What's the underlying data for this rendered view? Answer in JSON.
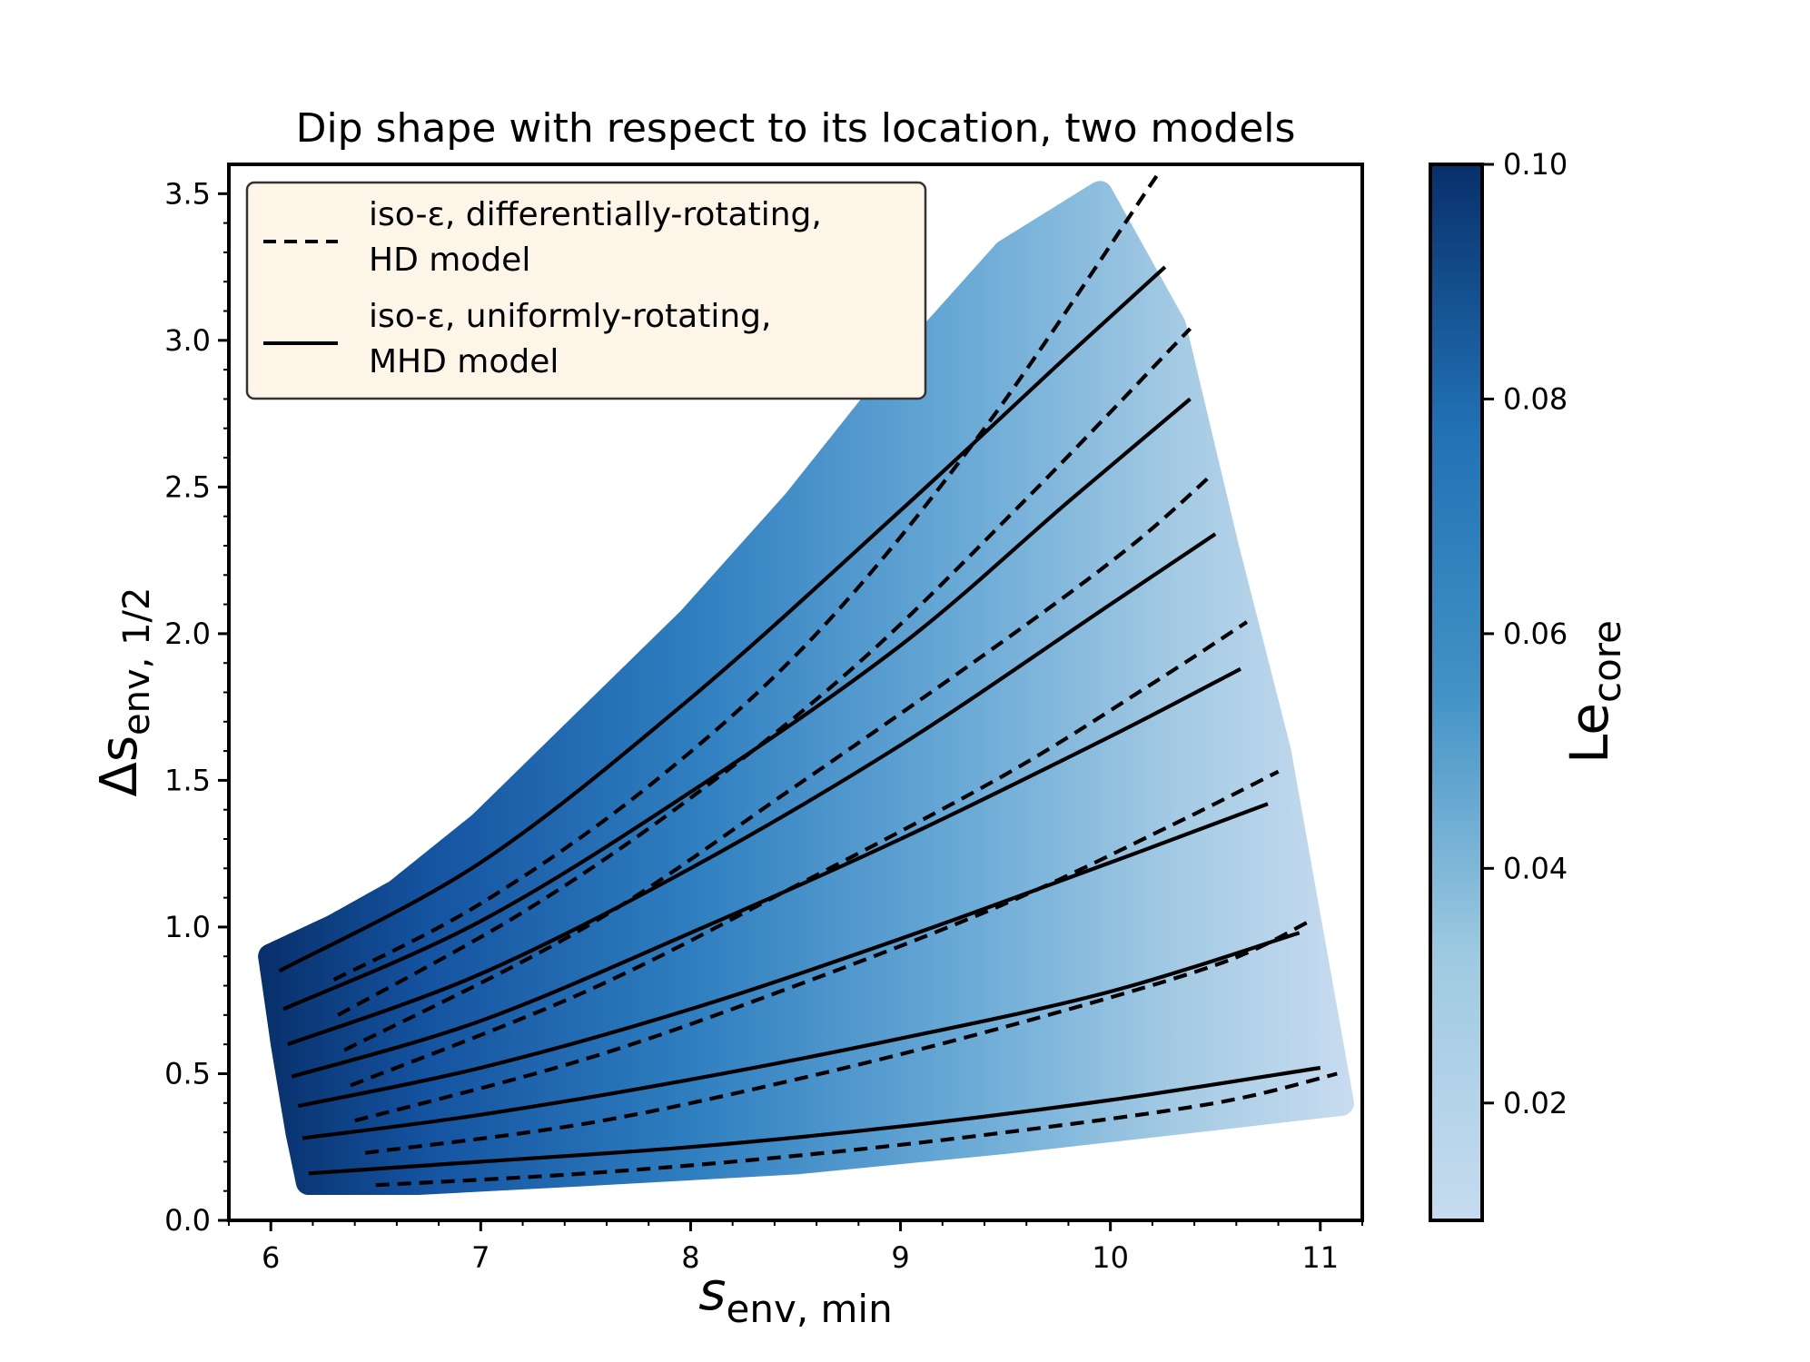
{
  "chart_data": {
    "type": "scatter",
    "title": "Dip shape with respect to its location, two models",
    "xlabel": "s",
    "xlabel_sub": "env, min",
    "ylabel": "Δs",
    "ylabel_sub": "env, 1/2",
    "xlim": [
      5.8,
      11.2
    ],
    "ylim": [
      0.0,
      3.6
    ],
    "xticks": [
      6,
      7,
      8,
      9,
      10,
      11
    ],
    "yticks": [
      0.0,
      0.5,
      1.0,
      1.5,
      2.0,
      2.5,
      3.0,
      3.5
    ],
    "grid": false,
    "legend": {
      "placement": "top-left",
      "entries": [
        {
          "style": "dashed",
          "line1": "iso-ε, differentially-rotating,",
          "line2": "HD model"
        },
        {
          "style": "solid",
          "line1": "iso-ε, uniformly-rotating,",
          "line2": "MHD model"
        }
      ]
    },
    "colorbar": {
      "label": "Le",
      "label_sub": "core",
      "range": [
        0.01,
        0.1
      ],
      "ticks": [
        0.02,
        0.04,
        0.06,
        0.08,
        0.1
      ],
      "tick_labels": [
        "0.02",
        "0.04",
        "0.06",
        "0.08",
        "0.10"
      ],
      "colormap": "Blues",
      "color_low": "#c6dbef",
      "color_high": "#08306b"
    },
    "scatter_region": {
      "description_color_variable": "Le_core",
      "left_edge": [
        [
          6.0,
          0.9
        ],
        [
          6.06,
          0.6
        ],
        [
          6.13,
          0.3
        ],
        [
          6.18,
          0.13
        ]
      ],
      "top_edge": [
        [
          6.0,
          0.9
        ],
        [
          6.3,
          1.0
        ],
        [
          6.6,
          1.12
        ],
        [
          7.0,
          1.35
        ],
        [
          7.5,
          1.7
        ],
        [
          8.0,
          2.05
        ],
        [
          8.5,
          2.45
        ],
        [
          9.0,
          2.9
        ],
        [
          9.5,
          3.3
        ],
        [
          9.95,
          3.5
        ]
      ],
      "right_edge": [
        [
          9.95,
          3.5
        ],
        [
          10.3,
          3.05
        ],
        [
          10.55,
          2.3
        ],
        [
          10.8,
          1.6
        ],
        [
          10.95,
          1.0
        ],
        [
          11.1,
          0.4
        ]
      ],
      "bottom_edge": [
        [
          11.1,
          0.4
        ],
        [
          10.5,
          0.35
        ],
        [
          9.5,
          0.27
        ],
        [
          8.5,
          0.2
        ],
        [
          7.5,
          0.16
        ],
        [
          6.7,
          0.13
        ],
        [
          6.18,
          0.13
        ]
      ]
    },
    "series": [
      {
        "name": "MHD 1",
        "style": "solid",
        "points": [
          [
            6.18,
            0.16
          ],
          [
            7.0,
            0.2
          ],
          [
            8.0,
            0.25
          ],
          [
            9.0,
            0.32
          ],
          [
            10.0,
            0.41
          ],
          [
            11.0,
            0.52
          ]
        ]
      },
      {
        "name": "HD 1",
        "style": "dashed",
        "points": [
          [
            6.5,
            0.12
          ],
          [
            7.5,
            0.16
          ],
          [
            8.5,
            0.22
          ],
          [
            9.5,
            0.3
          ],
          [
            10.5,
            0.4
          ],
          [
            11.08,
            0.5
          ]
        ]
      },
      {
        "name": "MHD 2",
        "style": "solid",
        "points": [
          [
            6.15,
            0.28
          ],
          [
            7.0,
            0.36
          ],
          [
            8.0,
            0.48
          ],
          [
            9.0,
            0.62
          ],
          [
            10.0,
            0.78
          ],
          [
            10.9,
            0.98
          ]
        ]
      },
      {
        "name": "HD 2",
        "style": "dashed",
        "points": [
          [
            6.45,
            0.23
          ],
          [
            7.5,
            0.33
          ],
          [
            8.5,
            0.48
          ],
          [
            9.5,
            0.66
          ],
          [
            10.5,
            0.87
          ],
          [
            10.95,
            1.02
          ]
        ]
      },
      {
        "name": "MHD 3",
        "style": "solid",
        "points": [
          [
            6.13,
            0.39
          ],
          [
            7.0,
            0.52
          ],
          [
            8.0,
            0.72
          ],
          [
            9.0,
            0.96
          ],
          [
            10.0,
            1.22
          ],
          [
            10.75,
            1.42
          ]
        ]
      },
      {
        "name": "HD 3",
        "style": "dashed",
        "points": [
          [
            6.4,
            0.34
          ],
          [
            7.5,
            0.55
          ],
          [
            8.5,
            0.8
          ],
          [
            9.5,
            1.08
          ],
          [
            10.3,
            1.35
          ],
          [
            10.8,
            1.53
          ]
        ]
      },
      {
        "name": "MHD 4",
        "style": "solid",
        "points": [
          [
            6.1,
            0.49
          ],
          [
            7.0,
            0.68
          ],
          [
            8.0,
            0.98
          ],
          [
            9.0,
            1.3
          ],
          [
            10.0,
            1.65
          ],
          [
            10.62,
            1.88
          ]
        ]
      },
      {
        "name": "HD 4",
        "style": "dashed",
        "points": [
          [
            6.38,
            0.46
          ],
          [
            7.5,
            0.78
          ],
          [
            8.5,
            1.14
          ],
          [
            9.5,
            1.52
          ],
          [
            10.2,
            1.83
          ],
          [
            10.65,
            2.04
          ]
        ]
      },
      {
        "name": "MHD 5",
        "style": "solid",
        "points": [
          [
            6.08,
            0.6
          ],
          [
            7.0,
            0.84
          ],
          [
            8.0,
            1.2
          ],
          [
            9.0,
            1.62
          ],
          [
            10.0,
            2.1
          ],
          [
            10.5,
            2.34
          ]
        ]
      },
      {
        "name": "HD 5",
        "style": "dashed",
        "points": [
          [
            6.35,
            0.58
          ],
          [
            7.5,
            1.0
          ],
          [
            8.5,
            1.48
          ],
          [
            9.5,
            1.98
          ],
          [
            10.1,
            2.3
          ],
          [
            10.48,
            2.54
          ]
        ]
      },
      {
        "name": "MHD 6",
        "style": "solid",
        "points": [
          [
            6.06,
            0.72
          ],
          [
            7.0,
            1.02
          ],
          [
            8.0,
            1.46
          ],
          [
            9.0,
            1.96
          ],
          [
            9.8,
            2.45
          ],
          [
            10.38,
            2.8
          ]
        ]
      },
      {
        "name": "HD 6",
        "style": "dashed",
        "points": [
          [
            6.32,
            0.7
          ],
          [
            7.2,
            1.05
          ],
          [
            8.0,
            1.44
          ],
          [
            8.8,
            1.9
          ],
          [
            9.6,
            2.46
          ],
          [
            10.38,
            3.04
          ]
        ]
      },
      {
        "name": "MHD 7",
        "style": "solid",
        "points": [
          [
            6.04,
            0.85
          ],
          [
            7.0,
            1.22
          ],
          [
            8.0,
            1.78
          ],
          [
            9.0,
            2.42
          ],
          [
            9.8,
            2.95
          ],
          [
            10.26,
            3.25
          ]
        ]
      },
      {
        "name": "HD 7",
        "style": "dashed",
        "points": [
          [
            6.3,
            0.82
          ],
          [
            7.0,
            1.08
          ],
          [
            7.8,
            1.48
          ],
          [
            8.6,
            2.0
          ],
          [
            9.4,
            2.7
          ],
          [
            10.22,
            3.56
          ]
        ]
      }
    ]
  }
}
